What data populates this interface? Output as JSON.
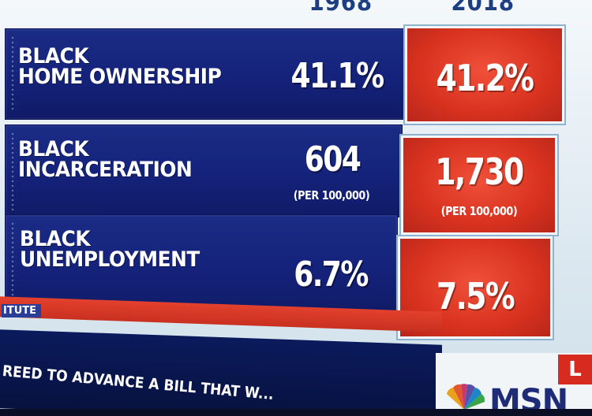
{
  "header": {
    "year_left": "1968",
    "year_right": "2018"
  },
  "rows": [
    {
      "label_line1": "BLACK",
      "label_line2": "HOME OWNERSHIP",
      "value_1968": "41.1%",
      "value_2018": "41.2%",
      "sub_1968": "",
      "sub_2018": ""
    },
    {
      "label_line1": "BLACK",
      "label_line2": "INCARCERATION",
      "value_1968": "604",
      "value_2018": "1,730",
      "sub_1968": "(PER 100,000)",
      "sub_2018": "(PER 100,000)"
    },
    {
      "label_line1": "BLACK",
      "label_line2": "UNEMPLOYMENT",
      "value_1968": "6.7%",
      "value_2018": "7.5%",
      "sub_1968": "",
      "sub_2018": ""
    }
  ],
  "source_strip": "ITUTE",
  "ticker": "REED TO ADVANCE A BILL THAT W...",
  "network": {
    "logo_text": "MSN",
    "live_tag": "L",
    "colors": {
      "panel_blue": "#14227a",
      "panel_red": "#d8321f",
      "logo_blue": "#1e2c77"
    }
  }
}
